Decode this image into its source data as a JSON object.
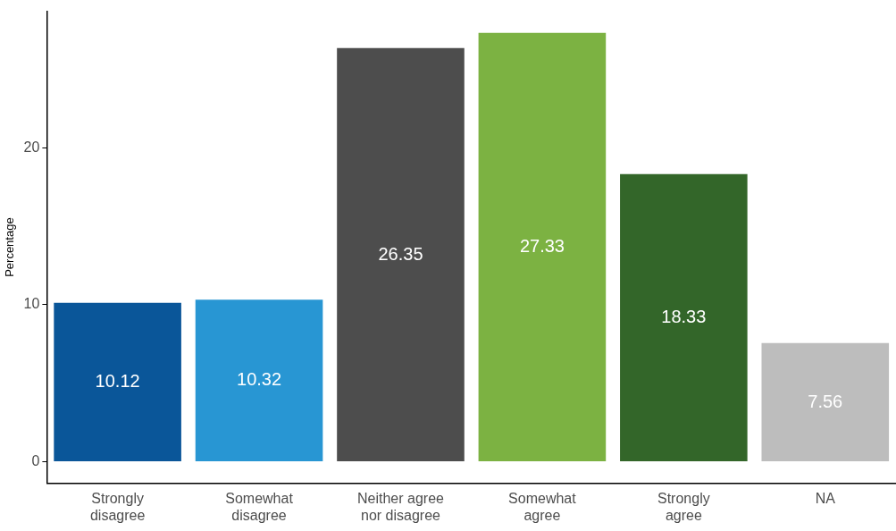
{
  "chart_data": {
    "type": "bar",
    "ylabel": "Percentage",
    "categories": [
      "Strongly disagree",
      "Somewhat disagree",
      "Neither agree nor disagree",
      "Somewhat agree",
      "Strongly agree",
      "NA"
    ],
    "values": [
      10.12,
      10.32,
      26.35,
      27.33,
      18.33,
      7.56
    ],
    "colors": [
      "#0a5699",
      "#2896d3",
      "#4d4d4d",
      "#7cb242",
      "#336629",
      "#bdbdbd"
    ],
    "ylim": [
      -1.37,
      28.7
    ],
    "yticks": [
      0,
      10,
      20
    ],
    "grid": false,
    "legend": false,
    "data_labels": true
  }
}
